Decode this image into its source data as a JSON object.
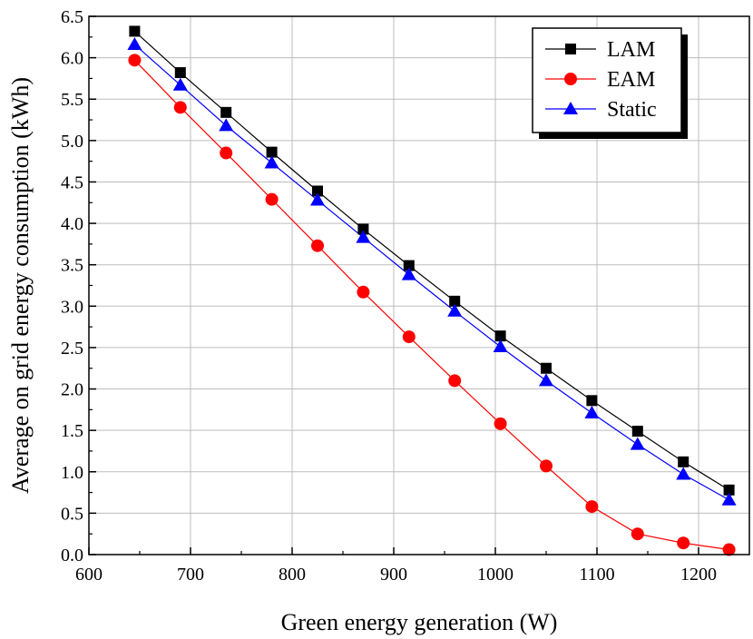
{
  "chart_data": {
    "type": "line",
    "title": "",
    "xlabel": "Green energy generation (W)",
    "ylabel": "Average on grid energy consumption (kWh)",
    "xlim": [
      600,
      1250
    ],
    "ylim": [
      0.0,
      6.5
    ],
    "x_ticks": [
      "600",
      "700",
      "800",
      "900",
      "1000",
      "1100",
      "1200"
    ],
    "y_ticks": [
      "0.0",
      "0.5",
      "1.0",
      "1.5",
      "2.0",
      "2.5",
      "3.0",
      "3.5",
      "4.0",
      "4.5",
      "5.0",
      "5.5",
      "6.0",
      "6.5"
    ],
    "grid": true,
    "legend_position": "top-right",
    "x": [
      645,
      690,
      735,
      780,
      825,
      870,
      915,
      960,
      1005,
      1050,
      1095,
      1140,
      1185,
      1230
    ],
    "series": [
      {
        "name": "LAM",
        "marker": "square",
        "color": "#000000",
        "values": [
          6.32,
          5.82,
          5.34,
          4.86,
          4.39,
          3.93,
          3.49,
          3.06,
          2.64,
          2.25,
          1.86,
          1.49,
          1.12,
          0.78
        ]
      },
      {
        "name": "EAM",
        "marker": "circle",
        "color": "#ff0000",
        "values": [
          5.97,
          5.4,
          4.85,
          4.29,
          3.73,
          3.17,
          2.63,
          2.1,
          1.58,
          1.07,
          0.58,
          0.25,
          0.14,
          0.06
        ]
      },
      {
        "name": "Static",
        "marker": "triangle",
        "color": "#0000ff",
        "values": [
          6.16,
          5.67,
          5.18,
          4.73,
          4.28,
          3.83,
          3.38,
          2.94,
          2.51,
          2.1,
          1.71,
          1.33,
          0.97,
          0.66
        ]
      }
    ]
  }
}
